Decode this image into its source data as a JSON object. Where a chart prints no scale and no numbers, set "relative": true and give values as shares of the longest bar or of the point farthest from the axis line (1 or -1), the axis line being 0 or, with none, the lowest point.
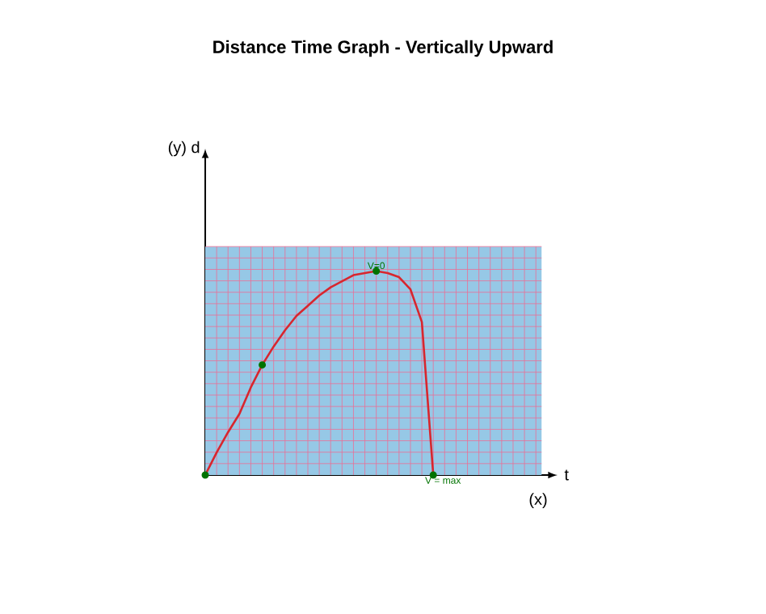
{
  "chart_data": {
    "type": "line",
    "title": "Distance Time Graph - Vertically Upward",
    "relative": true,
    "grid": true,
    "categories": [
      null,
      null,
      null,
      null,
      null,
      null,
      null,
      null,
      null,
      null,
      null,
      null,
      null,
      null,
      null,
      null,
      null,
      null,
      null,
      null,
      null
    ],
    "series": [
      {
        "type": "line",
        "color": "#d8262e",
        "values": [
          0,
          0.11,
          0.21,
          0.3,
          0.43,
          0.54,
          0.63,
          0.71,
          0.78,
          0.83,
          0.88,
          0.92,
          0.95,
          0.98,
          0.99,
          1.0,
          0.99,
          0.97,
          0.91,
          0.75,
          0
        ]
      }
    ],
    "annotations": [
      "V=0",
      "V = max",
      "(x)",
      "(y) d",
      "t"
    ]
  }
}
